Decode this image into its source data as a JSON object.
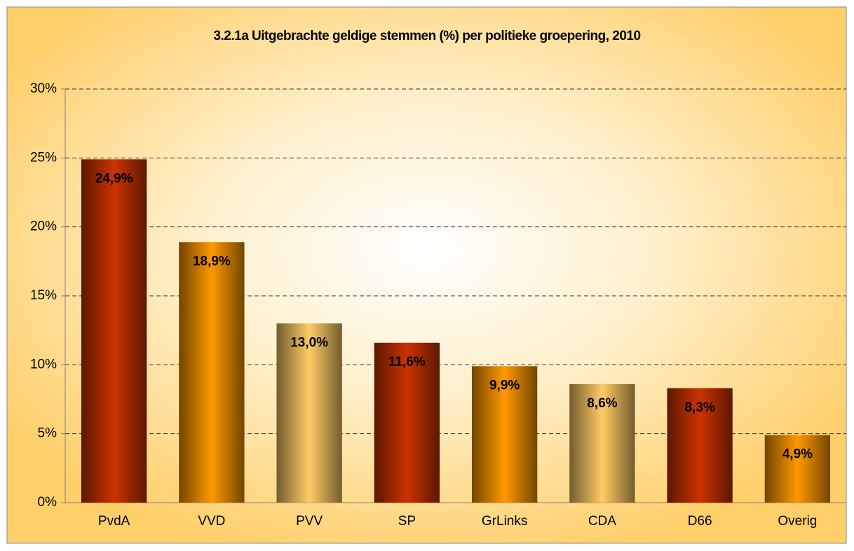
{
  "chart_data": {
    "type": "bar",
    "title": "3.2.1a Uitgebrachte geldige stemmen (%) per politieke groepering, 2010",
    "categories": [
      "PvdA",
      "VVD",
      "PVV",
      "SP",
      "GrLinks",
      "CDA",
      "D66",
      "Overig"
    ],
    "values": [
      24.9,
      18.9,
      13.0,
      11.6,
      9.9,
      8.6,
      8.3,
      4.9
    ],
    "value_labels": [
      "24,9%",
      "18,9%",
      "13,0%",
      "11,6%",
      "9,9%",
      "8,6%",
      "8,3%",
      "4,9%"
    ],
    "colors": [
      "#cc3300",
      "#ff9900",
      "#ffcc66",
      "#cc3300",
      "#ff9900",
      "#ffcc66",
      "#cc3300",
      "#ff9900"
    ],
    "ylim": [
      0,
      30
    ],
    "yticks": [
      {
        "value": 0,
        "label": "0%"
      },
      {
        "value": 5,
        "label": "5%"
      },
      {
        "value": 10,
        "label": "10%"
      },
      {
        "value": 15,
        "label": "15%"
      },
      {
        "value": 20,
        "label": "20%"
      },
      {
        "value": 25,
        "label": "25%"
      },
      {
        "value": 30,
        "label": "30%"
      }
    ],
    "grid": true
  }
}
